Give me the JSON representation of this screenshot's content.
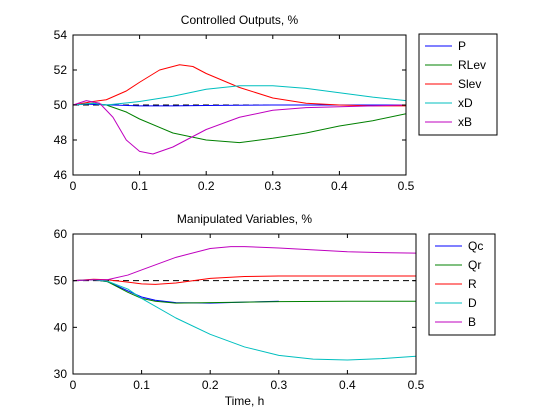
{
  "chart_data": [
    {
      "type": "line",
      "title": "Controlled Outputs, %",
      "xlabel": "",
      "ylabel": "",
      "xlim": [
        0,
        0.5
      ],
      "ylim": [
        46,
        54
      ],
      "xticks": [
        0,
        0.1,
        0.2,
        0.3,
        0.4,
        0.5
      ],
      "xtick_labels": [
        "0",
        "0.1",
        "0.2",
        "0.3",
        "0.4",
        "0.5"
      ],
      "yticks": [
        46,
        48,
        50,
        52,
        54
      ],
      "ytick_labels": [
        "46",
        "48",
        "50",
        "52",
        "54"
      ],
      "grid": false,
      "legend_position": "outside-right",
      "reference_line": {
        "y": 50,
        "style": "dashed",
        "color": "#000000"
      },
      "series": [
        {
          "name": "P",
          "color": "#0000ff",
          "x": [
            0,
            0.02,
            0.04,
            0.06,
            0.1,
            0.15,
            0.2,
            0.3,
            0.4,
            0.5
          ],
          "y": [
            50.0,
            50.05,
            50.02,
            50.0,
            49.95,
            49.95,
            49.97,
            50.0,
            50.0,
            50.0
          ]
        },
        {
          "name": "RLev",
          "color": "#008000",
          "x": [
            0,
            0.03,
            0.05,
            0.08,
            0.1,
            0.15,
            0.2,
            0.25,
            0.3,
            0.35,
            0.4,
            0.45,
            0.5
          ],
          "y": [
            50.0,
            50.1,
            50.0,
            49.6,
            49.2,
            48.4,
            48.0,
            47.85,
            48.1,
            48.4,
            48.8,
            49.1,
            49.5
          ]
        },
        {
          "name": "Slev",
          "color": "#ff0000",
          "x": [
            0,
            0.03,
            0.05,
            0.08,
            0.1,
            0.13,
            0.16,
            0.18,
            0.2,
            0.25,
            0.3,
            0.35,
            0.4,
            0.45,
            0.5
          ],
          "y": [
            50.0,
            50.2,
            50.3,
            50.8,
            51.3,
            52.0,
            52.3,
            52.2,
            51.8,
            51.0,
            50.4,
            50.1,
            50.0,
            49.95,
            49.95
          ]
        },
        {
          "name": "xD",
          "color": "#00bfbf",
          "x": [
            0,
            0.03,
            0.05,
            0.1,
            0.15,
            0.2,
            0.25,
            0.3,
            0.35,
            0.4,
            0.45,
            0.5
          ],
          "y": [
            50.0,
            50.1,
            50.0,
            50.2,
            50.5,
            50.9,
            51.1,
            51.1,
            50.95,
            50.7,
            50.45,
            50.25
          ]
        },
        {
          "name": "xB",
          "color": "#bf00bf",
          "x": [
            0,
            0.02,
            0.04,
            0.06,
            0.08,
            0.1,
            0.12,
            0.15,
            0.2,
            0.25,
            0.3,
            0.35,
            0.4,
            0.45,
            0.5
          ],
          "y": [
            50.0,
            50.25,
            50.1,
            49.3,
            48.0,
            47.35,
            47.2,
            47.6,
            48.6,
            49.3,
            49.7,
            49.85,
            49.9,
            49.95,
            50.0
          ]
        }
      ]
    },
    {
      "type": "line",
      "title": "Manipulated Variables, %",
      "xlabel": "Time, h",
      "ylabel": "",
      "xlim": [
        0,
        0.5
      ],
      "ylim": [
        30,
        60
      ],
      "xticks": [
        0,
        0.1,
        0.2,
        0.3,
        0.4,
        0.5
      ],
      "xtick_labels": [
        "0",
        "0.1",
        "0.2",
        "0.3",
        "0.4",
        "0.5"
      ],
      "yticks": [
        30,
        40,
        50,
        60
      ],
      "ytick_labels": [
        "30",
        "40",
        "50",
        "60"
      ],
      "grid": false,
      "legend_position": "outside-right",
      "reference_line": {
        "y": 50,
        "style": "dashed",
        "color": "#000000"
      },
      "series": [
        {
          "name": "Qc",
          "color": "#0000ff",
          "x": [
            0,
            0.03,
            0.05,
            0.08,
            0.1,
            0.12,
            0.15,
            0.2,
            0.25,
            0.3
          ],
          "y": [
            50.0,
            50.2,
            49.8,
            47.8,
            46.5,
            45.8,
            45.3,
            45.2,
            45.4,
            45.6
          ]
        },
        {
          "name": "Qr",
          "color": "#008000",
          "x": [
            0,
            0.03,
            0.05,
            0.08,
            0.1,
            0.12,
            0.15,
            0.2,
            0.3,
            0.4,
            0.5
          ],
          "y": [
            50.0,
            50.2,
            49.8,
            47.5,
            46.2,
            45.6,
            45.2,
            45.3,
            45.5,
            45.6,
            45.6
          ]
        },
        {
          "name": "R",
          "color": "#ff0000",
          "x": [
            0,
            0.03,
            0.05,
            0.08,
            0.1,
            0.12,
            0.15,
            0.2,
            0.25,
            0.3,
            0.4,
            0.5
          ],
          "y": [
            50.0,
            50.3,
            50.2,
            49.7,
            49.3,
            49.2,
            49.5,
            50.5,
            50.9,
            51.0,
            51.0,
            51.0
          ]
        },
        {
          "name": "D",
          "color": "#00bfbf",
          "x": [
            0,
            0.03,
            0.05,
            0.08,
            0.1,
            0.15,
            0.2,
            0.25,
            0.3,
            0.35,
            0.4,
            0.45,
            0.5
          ],
          "y": [
            50.0,
            50.2,
            49.9,
            48.2,
            46.2,
            42.0,
            38.5,
            35.8,
            34.0,
            33.2,
            33.0,
            33.3,
            33.8
          ]
        },
        {
          "name": "B",
          "color": "#bf00bf",
          "x": [
            0,
            0.03,
            0.05,
            0.08,
            0.1,
            0.15,
            0.2,
            0.23,
            0.25,
            0.3,
            0.35,
            0.4,
            0.45,
            0.5
          ],
          "y": [
            50.0,
            50.2,
            50.2,
            51.2,
            52.3,
            55.0,
            56.9,
            57.3,
            57.3,
            57.0,
            56.6,
            56.2,
            56.0,
            55.9
          ]
        }
      ]
    }
  ]
}
